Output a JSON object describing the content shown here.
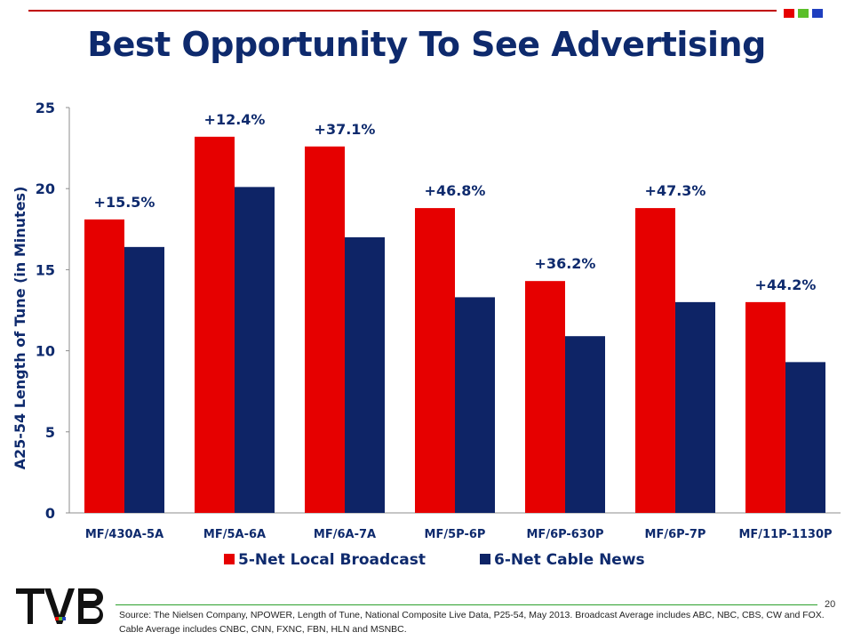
{
  "page": {
    "title": "Best Opportunity To See Advertising",
    "page_number": "20",
    "source": "Source: The Nielsen Company, NPOWER, Length of Tune, National Composite Live Data, P25-54, May 2013.  Broadcast Average includes ABC, NBC, CBS, CW and FOX.  Cable Average includes CNBC, CNN, FXNC, FBN, HLN and MSNBC.",
    "logo_text": "TVB",
    "colors": {
      "title": "#0e2a6d",
      "accent_red": "#c00000",
      "accent_green": "#5bbf2a",
      "accent_blue": "#1f3fbf"
    }
  },
  "chart_data": {
    "type": "bar",
    "title": "",
    "xlabel": "",
    "ylabel": "A25-54 Length of Tune (in Minutes)",
    "ylim": [
      0,
      25
    ],
    "yticks": [
      0,
      5,
      10,
      15,
      20,
      25
    ],
    "grid": false,
    "legend_position": "bottom",
    "categories": [
      "MF/430A-5A",
      "MF/5A-6A",
      "MF/6A-7A",
      "MF/5P-6P",
      "MF/6P-630P",
      "MF/6P-7P",
      "MF/11P-1130P"
    ],
    "series": [
      {
        "name": "5-Net Local Broadcast",
        "color": "#e60000",
        "values": [
          18.1,
          23.2,
          22.6,
          18.8,
          14.3,
          18.8,
          13.0
        ]
      },
      {
        "name": "6-Net Cable News",
        "color": "#0e2466",
        "values": [
          16.4,
          20.1,
          17.0,
          13.3,
          10.9,
          13.0,
          9.3
        ]
      }
    ],
    "annotations": [
      "+15.5%",
      "+12.4%",
      "+37.1%",
      "+46.8%",
      "+36.2%",
      "+47.3%",
      "+44.2%"
    ]
  }
}
